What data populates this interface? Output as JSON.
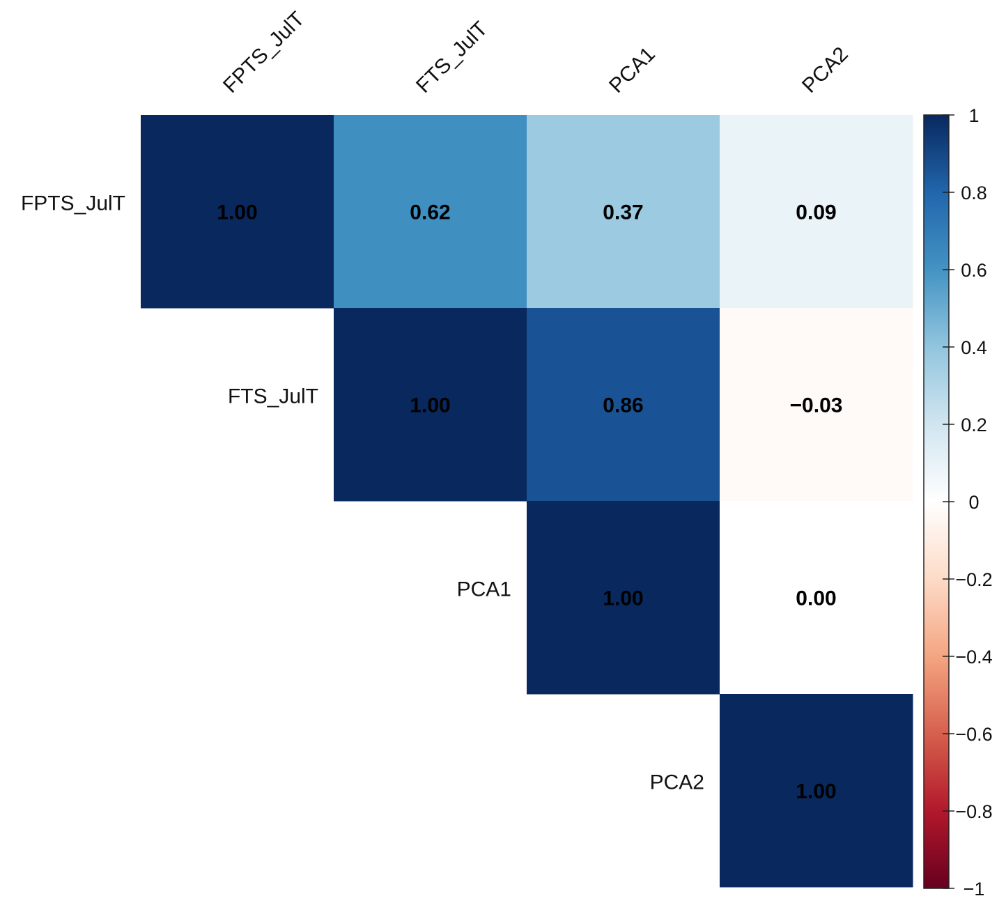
{
  "chart_data": {
    "type": "heatmap",
    "subtype": "correlation-matrix-upper",
    "variables": [
      "FPTS_JulT",
      "FTS_JulT",
      "PCA1",
      "PCA2"
    ],
    "cells": [
      {
        "row": 0,
        "col": 0,
        "value": 1.0,
        "label": "1.00"
      },
      {
        "row": 0,
        "col": 1,
        "value": 0.62,
        "label": "0.62"
      },
      {
        "row": 0,
        "col": 2,
        "value": 0.37,
        "label": "0.37"
      },
      {
        "row": 0,
        "col": 3,
        "value": 0.09,
        "label": "0.09"
      },
      {
        "row": 1,
        "col": 1,
        "value": 1.0,
        "label": "1.00"
      },
      {
        "row": 1,
        "col": 2,
        "value": 0.86,
        "label": "0.86"
      },
      {
        "row": 1,
        "col": 3,
        "value": -0.03,
        "label": "−0.03"
      },
      {
        "row": 2,
        "col": 2,
        "value": 1.0,
        "label": "1.00"
      },
      {
        "row": 2,
        "col": 3,
        "value": 0.0,
        "label": "0.00"
      },
      {
        "row": 3,
        "col": 3,
        "value": 1.0,
        "label": "1.00"
      }
    ],
    "colorbar": {
      "range": [
        -1,
        1
      ],
      "ticks": [
        1,
        0.8,
        0.6,
        0.4,
        0.2,
        0,
        -0.2,
        -0.4,
        -0.6,
        -0.8,
        -1
      ],
      "tick_labels": [
        "1",
        "0.8",
        "0.6",
        "0.4",
        "0.2",
        "0",
        "−0.2",
        "−0.4",
        "−0.6",
        "−0.8",
        "−1"
      ],
      "colors": {
        "-1": "#67001f",
        "-0.8": "#b2182b",
        "-0.6": "#d6604d",
        "-0.4": "#f4a582",
        "-0.2": "#fddbc7",
        "0": "#ffffff",
        "0.2": "#d1e5f0",
        "0.4": "#92c5de",
        "0.6": "#4393c3",
        "0.8": "#2166ac",
        "1": "#08285e"
      }
    },
    "title": "",
    "xlabel": "",
    "ylabel": ""
  }
}
